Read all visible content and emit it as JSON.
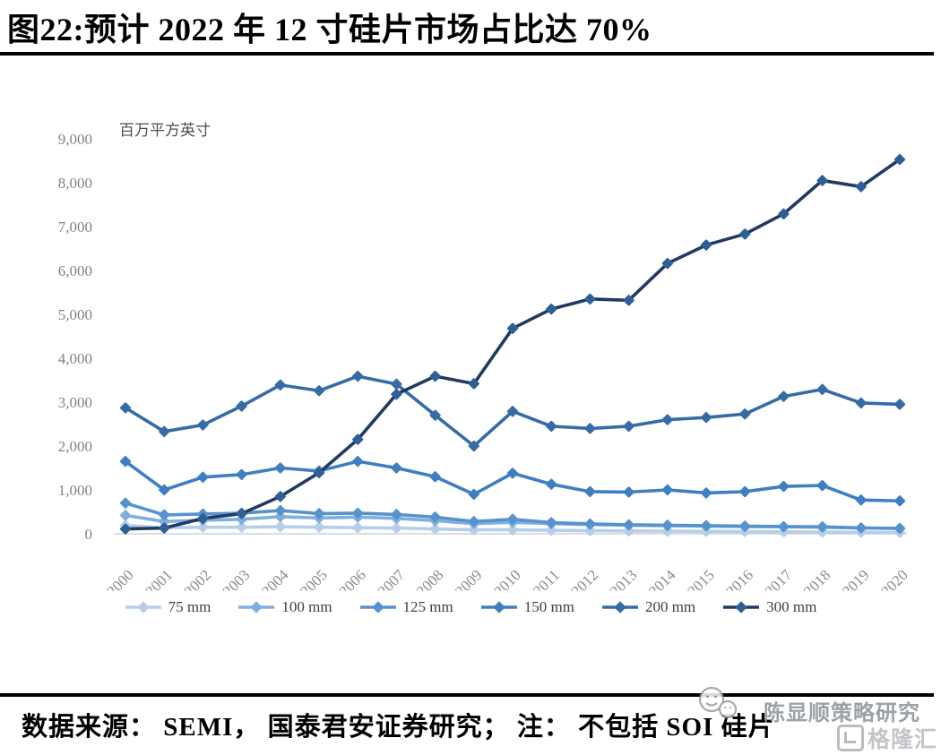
{
  "title": "图22:预计 2022 年 12 寸硅片市场占比达 70%",
  "footer": {
    "source_note": "数据来源： SEMI， 国泰君安证券研究； 注： 不包括 SOI 硅片"
  },
  "watermark": {
    "text": "陈显顺策略研究",
    "logo_text": "格隆汇"
  },
  "chart_data": {
    "type": "line",
    "unit_label": "百万平方英寸",
    "x": [
      "2000",
      "2001",
      "2002",
      "2003",
      "2004",
      "2005",
      "2006",
      "2007",
      "2008",
      "2009",
      "2010",
      "2011",
      "2012",
      "2013",
      "2014",
      "2015",
      "2016",
      "2017",
      "2018",
      "2019",
      "2020"
    ],
    "ylim": [
      0,
      9000
    ],
    "ytick_values": [
      0,
      1000,
      2000,
      3000,
      4000,
      5000,
      6000,
      7000,
      8000,
      9000
    ],
    "ytick_labels": [
      "0",
      "1,000",
      "2,000",
      "3,000",
      "4,000",
      "5,000",
      "6,000",
      "7,000",
      "8,000",
      "9,000"
    ],
    "grid": false,
    "legend_position": "bottom",
    "series": [
      {
        "name": "75 mm",
        "color": "#b6cee9",
        "marker_color": "#b6cee9",
        "values": [
          190,
          140,
          150,
          150,
          160,
          150,
          140,
          130,
          110,
          90,
          90,
          80,
          70,
          65,
          60,
          55,
          50,
          45,
          40,
          35,
          30
        ]
      },
      {
        "name": "100 mm",
        "color": "#7fafdd",
        "marker_color": "#7fafdd",
        "values": [
          420,
          280,
          310,
          330,
          390,
          360,
          380,
          350,
          300,
          230,
          260,
          230,
          210,
          195,
          185,
          175,
          165,
          160,
          150,
          130,
          120
        ]
      },
      {
        "name": "125 mm",
        "color": "#5693cd",
        "marker_color": "#5693cd",
        "values": [
          700,
          430,
          450,
          470,
          530,
          460,
          470,
          440,
          380,
          280,
          330,
          255,
          225,
          205,
          195,
          185,
          175,
          165,
          160,
          135,
          125
        ]
      },
      {
        "name": "150 mm",
        "color": "#3f7fc1",
        "marker_color": "#3f7fc1",
        "values": [
          1650,
          1000,
          1290,
          1350,
          1500,
          1430,
          1650,
          1500,
          1300,
          900,
          1380,
          1130,
          960,
          950,
          1000,
          930,
          960,
          1080,
          1100,
          770,
          750
        ]
      },
      {
        "name": "200 mm",
        "color": "#366ba6",
        "marker_color": "#366ba6",
        "values": [
          2870,
          2330,
          2480,
          2910,
          3390,
          3260,
          3590,
          3410,
          2700,
          2000,
          2790,
          2450,
          2400,
          2450,
          2600,
          2650,
          2730,
          3130,
          3290,
          2980,
          2950
        ]
      },
      {
        "name": "300 mm",
        "color": "#203a61",
        "marker_color": "#2e5f96",
        "values": [
          110,
          130,
          350,
          460,
          850,
          1390,
          2150,
          3180,
          3590,
          3420,
          4680,
          5120,
          5350,
          5320,
          6160,
          6580,
          6830,
          7290,
          8050,
          7910,
          8530
        ]
      }
    ]
  }
}
